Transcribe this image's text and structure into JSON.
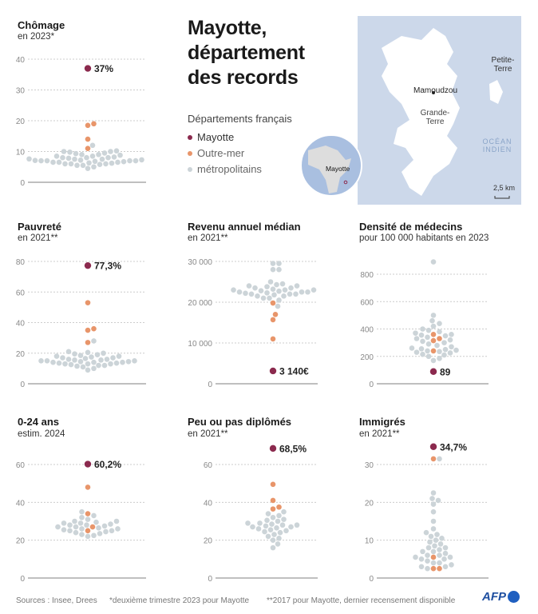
{
  "header": {
    "title_lines": [
      "Mayotte,",
      "département",
      "des records"
    ]
  },
  "legend": {
    "title": "Départements français",
    "items": [
      {
        "label": "Mayotte",
        "color": "#8b2a4e"
      },
      {
        "label": "Outre-mer",
        "color": "#e8956a"
      },
      {
        "label": "métropolitains",
        "color": "#ccd4d8"
      }
    ]
  },
  "map": {
    "labels": {
      "petite_terre": "Petite-Terre",
      "mamoudzou": "Mamoudzou",
      "grande_terre": "Grande-Terre",
      "ocean": "OCÉAN INDIEN",
      "globe": "Mayotte",
      "scale": "2,5 km"
    }
  },
  "footer": {
    "sources": "Sources : Insee, Drees",
    "note1": "*deuxième trimestre 2023 pour Mayotte",
    "note2": "**2017 pour Mayotte, dernier recensement disponible",
    "logo": "AFP"
  },
  "chart_data": [
    {
      "type": "scatter",
      "title": "Chômage",
      "subtitle": "en 2023*",
      "ticks": [
        0,
        10,
        20,
        30,
        40
      ],
      "tick_labels": [
        "0",
        "10",
        "20",
        "30",
        "40"
      ],
      "mayotte": 37,
      "mayotte_label": "37%",
      "outre_mer": [
        18.5,
        19,
        14,
        11
      ],
      "metropolitains": [
        4.5,
        5,
        5.5,
        5.5,
        5.8,
        6,
        6,
        6,
        6.2,
        6.3,
        6.5,
        6.5,
        6.5,
        6.7,
        6.8,
        7,
        7,
        7,
        7,
        7.1,
        7.2,
        7.3,
        7.5,
        7.5,
        7.6,
        7.8,
        8,
        8,
        8,
        8.2,
        8.5,
        8.5,
        8.8,
        9,
        9,
        9.3,
        9.5,
        9.8,
        10,
        10,
        10.2,
        12
      ]
    },
    {
      "type": "scatter",
      "title": "Pauvreté",
      "subtitle": "en 2021**",
      "ticks": [
        0,
        20,
        40,
        60,
        80
      ],
      "tick_labels": [
        "0",
        "20",
        "40",
        "60",
        "80"
      ],
      "mayotte": 77.3,
      "mayotte_label": "77,3%",
      "outre_mer": [
        53,
        36,
        35,
        27
      ],
      "metropolitains": [
        9,
        10,
        11,
        11.5,
        12,
        12,
        12.5,
        13,
        13,
        13,
        13.5,
        13.5,
        14,
        14,
        14,
        14.5,
        14.5,
        15,
        15,
        15,
        15.5,
        15.5,
        16,
        16,
        16.5,
        17,
        17,
        17.5,
        18,
        18,
        18.5,
        19,
        19.5,
        20,
        20.5,
        21,
        28
      ]
    },
    {
      "type": "scatter",
      "title": "Revenu annuel médian",
      "subtitle": "en 2021**",
      "ticks": [
        0,
        10000,
        20000,
        30000
      ],
      "tick_labels": [
        "0",
        "10 000",
        "20 000",
        "30 000"
      ],
      "mayotte": 3140,
      "mayotte_label": "3 140€",
      "outre_mer": [
        19800,
        17000,
        15700,
        11000
      ],
      "metropolitains": [
        19000,
        20500,
        21000,
        21000,
        21500,
        21500,
        21800,
        22000,
        22000,
        22000,
        22200,
        22300,
        22500,
        22500,
        22500,
        22700,
        22800,
        23000,
        23000,
        23000,
        23200,
        23500,
        23500,
        23800,
        24000,
        24000,
        24300,
        24500,
        25000,
        28000,
        28000,
        29500,
        29500
      ]
    },
    {
      "type": "scatter",
      "title": "Densité de médecins",
      "subtitle": "pour 100 000 habitants en 2023",
      "ticks": [
        0,
        200,
        400,
        600,
        800
      ],
      "tick_labels": [
        "0",
        "200",
        "400",
        "600",
        "800"
      ],
      "mayotte": 89,
      "mayotte_label": "89",
      "outre_mer": [
        360,
        330,
        315,
        240
      ],
      "metropolitains": [
        170,
        185,
        200,
        210,
        215,
        225,
        230,
        235,
        240,
        245,
        250,
        255,
        260,
        270,
        280,
        290,
        300,
        310,
        320,
        330,
        340,
        350,
        355,
        360,
        370,
        380,
        390,
        400,
        420,
        440,
        460,
        500,
        890
      ]
    },
    {
      "type": "scatter",
      "title": "0-24 ans",
      "subtitle": "estim. 2024",
      "ticks": [
        0,
        20,
        40,
        60
      ],
      "tick_labels": [
        "0",
        "20",
        "40",
        "60"
      ],
      "mayotte": 60.2,
      "mayotte_label": "60,2%",
      "outre_mer": [
        48,
        34,
        27,
        25
      ],
      "metropolitains": [
        22,
        22.5,
        23,
        23.5,
        24,
        24.5,
        25,
        25,
        25.5,
        26,
        26,
        26.5,
        27,
        27,
        27.5,
        28,
        28,
        28.5,
        29,
        29,
        29.5,
        30,
        30,
        31,
        32,
        33,
        35
      ]
    },
    {
      "type": "scatter",
      "title": "Peu ou pas diplômés",
      "subtitle": "en 2021**",
      "ticks": [
        0,
        20,
        40,
        60
      ],
      "tick_labels": [
        "0",
        "20",
        "40",
        "60"
      ],
      "mayotte": 68.5,
      "mayotte_label": "68,5%",
      "outre_mer": [
        49.5,
        41,
        37.5,
        36.5
      ],
      "metropolitains": [
        16,
        18,
        20,
        21,
        22,
        23,
        24,
        24.5,
        25,
        25.5,
        26,
        26.5,
        27,
        27,
        27.5,
        28,
        28,
        28.5,
        29,
        29,
        30,
        30.5,
        31,
        32,
        33,
        34,
        35
      ]
    },
    {
      "type": "scatter",
      "title": "Immigrés",
      "subtitle": "en 2021**",
      "ticks": [
        0,
        10,
        20,
        30
      ],
      "tick_labels": [
        "0",
        "10",
        "20",
        "30"
      ],
      "mayotte": 34.7,
      "mayotte_label": "34,7%",
      "outre_mer": [
        31.5,
        5.5,
        2.5,
        2.5
      ],
      "metropolitains": [
        2.5,
        3,
        3,
        3.5,
        4,
        4,
        4.5,
        5,
        5,
        5.5,
        5.5,
        6,
        6,
        6.5,
        7,
        7,
        7.5,
        8,
        8,
        8.5,
        9,
        9.5,
        10,
        10.5,
        11,
        11.5,
        12,
        13,
        15,
        17.5,
        19.5,
        20.5,
        21,
        22.5,
        31.5
      ]
    }
  ]
}
